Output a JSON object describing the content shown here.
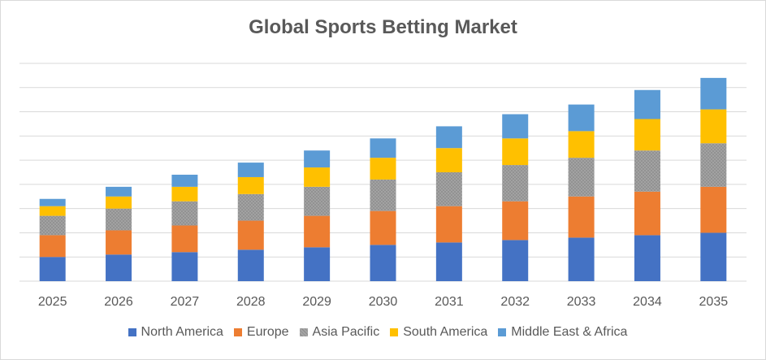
{
  "chart_data": {
    "type": "bar",
    "stacked": true,
    "title": "Global Sports Betting Market",
    "xlabel": "",
    "ylabel": "",
    "ylim": [
      0,
      90
    ],
    "grid": true,
    "legend_position": "bottom",
    "categories": [
      "2025",
      "2026",
      "2027",
      "2028",
      "2029",
      "2030",
      "2031",
      "2032",
      "2033",
      "2034",
      "2035"
    ],
    "series": [
      {
        "name": "North America",
        "color": "#4472c4",
        "values": [
          10,
          11,
          12,
          13,
          14,
          15,
          16,
          17,
          18,
          19,
          20
        ]
      },
      {
        "name": "Europe",
        "color": "#ed7d31",
        "values": [
          9,
          10,
          11,
          12,
          13,
          14,
          15,
          16,
          17,
          18,
          19
        ]
      },
      {
        "name": "Asia Pacific",
        "color": "#a5a5a5",
        "pattern": "hatched",
        "values": [
          8,
          9,
          10,
          11,
          12,
          13,
          14,
          15,
          16,
          17,
          18
        ]
      },
      {
        "name": "South America",
        "color": "#ffc000",
        "values": [
          4,
          5,
          6,
          7,
          8,
          9,
          10,
          11,
          11,
          13,
          14
        ]
      },
      {
        "name": "Middle East & Africa",
        "color": "#5b9bd5",
        "values": [
          3,
          4,
          5,
          6,
          7,
          8,
          9,
          10,
          11,
          12,
          13
        ]
      }
    ]
  }
}
